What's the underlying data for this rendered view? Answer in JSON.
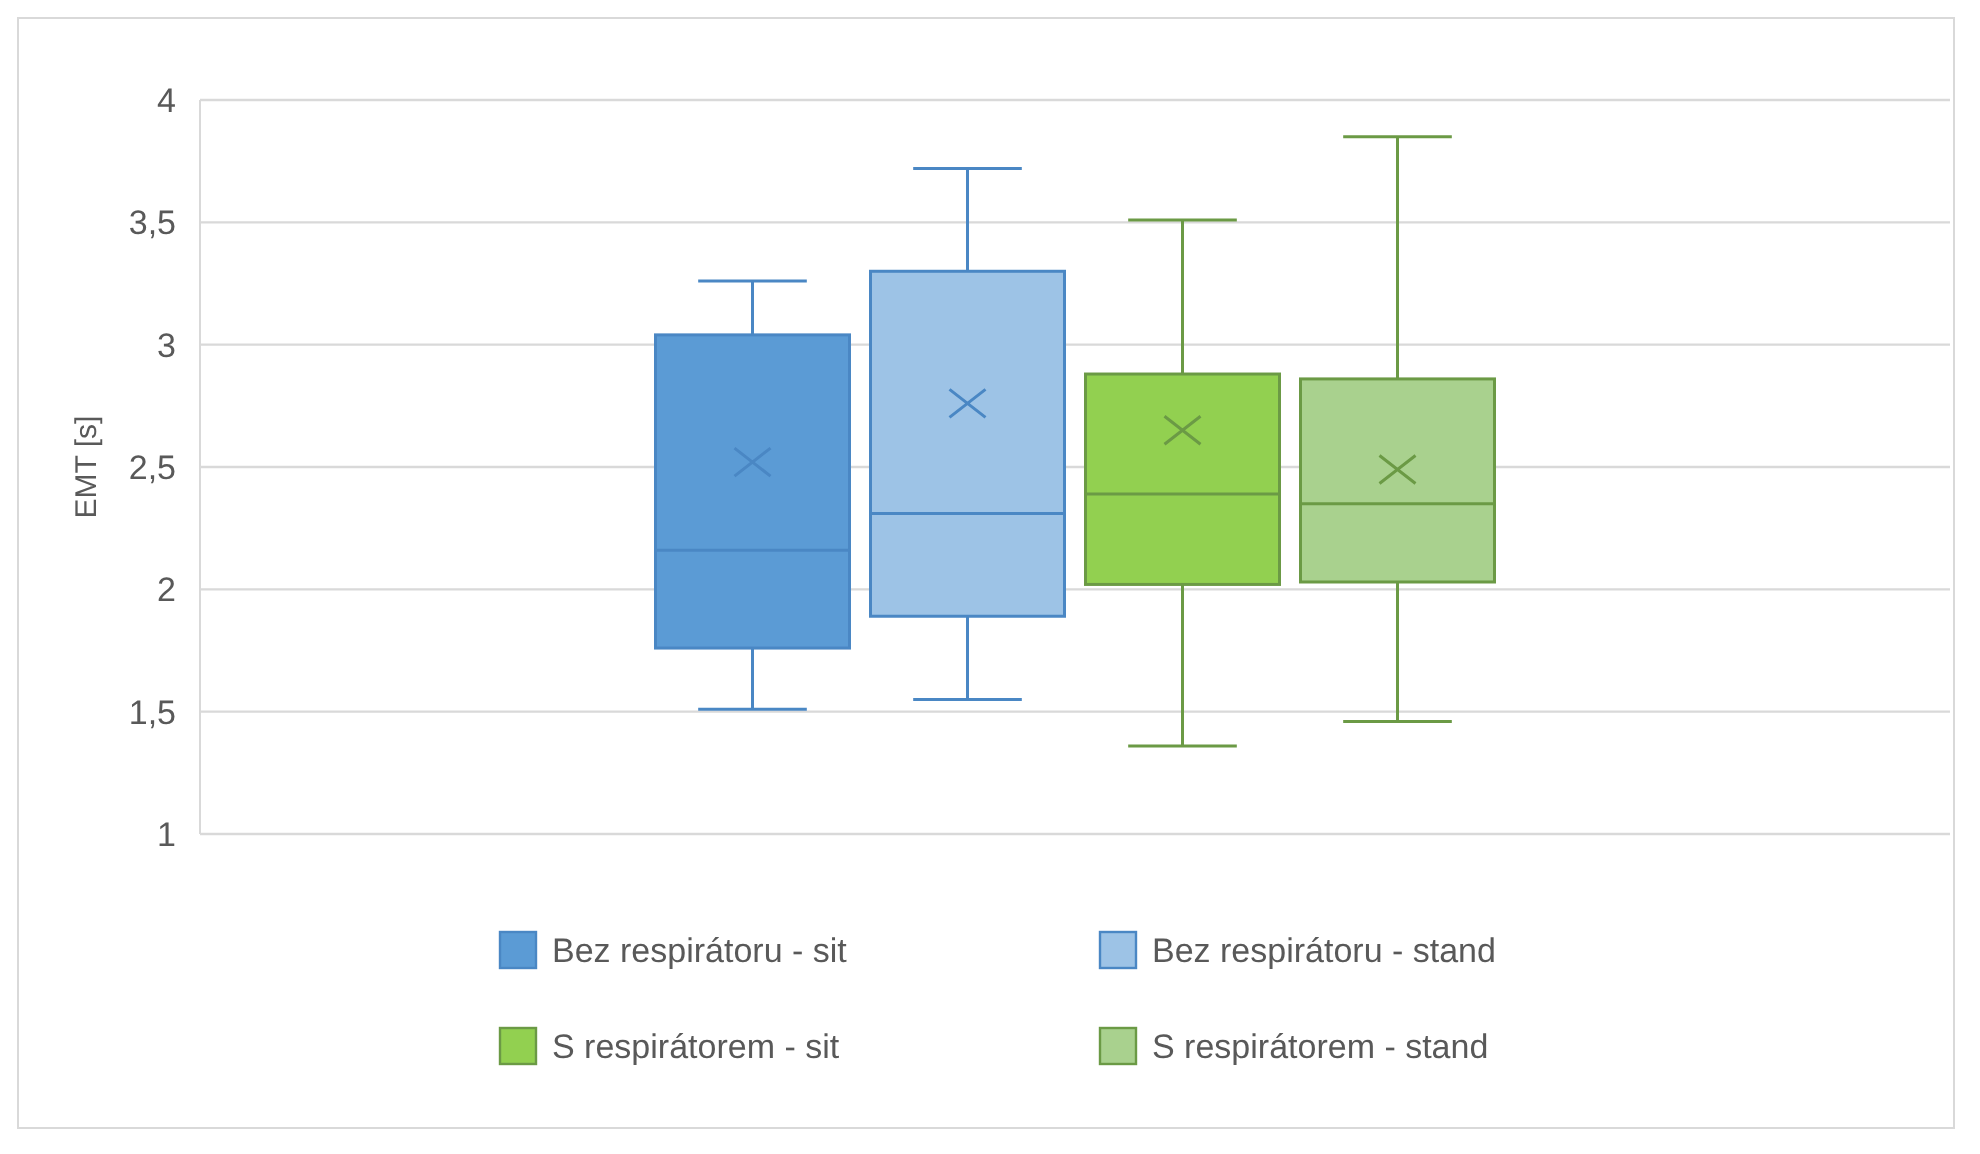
{
  "chart_data": {
    "type": "box",
    "ylabel": "EMT [s]",
    "categories": [
      null
    ],
    "ylim": [
      1,
      4
    ],
    "yticks": [
      1,
      {
        "value": 1.5,
        "label": "1,5"
      },
      2,
      {
        "value": 2.5,
        "label": "2,5"
      },
      3,
      {
        "value": 3.5,
        "label": "3,5"
      },
      4
    ],
    "tick_labels": "y",
    "grid": "y",
    "legend": "bottom",
    "series": [
      {
        "name": "Bez respirátoru - sit",
        "color": "#5b9bd5",
        "boxes": [
          {
            "low": 1.51,
            "q1": 1.76,
            "median": 2.16,
            "q3": 3.04,
            "high": 3.26,
            "mean": 2.52
          }
        ]
      },
      {
        "name": "Bez respirátoru - stand",
        "color": "#9dc3e6",
        "boxes": [
          {
            "low": 1.55,
            "q1": 1.89,
            "median": 2.31,
            "q3": 3.3,
            "high": 3.72,
            "mean": 2.76
          }
        ]
      },
      {
        "name": "S respirátorem - sit",
        "color": "#92d050",
        "boxes": [
          {
            "low": 1.36,
            "q1": 2.02,
            "median": 2.39,
            "q3": 2.88,
            "high": 3.51,
            "mean": 2.65
          }
        ]
      },
      {
        "name": "S respirátorem - stand",
        "color": "#a9d18e",
        "boxes": [
          {
            "low": 1.46,
            "q1": 2.03,
            "median": 2.35,
            "q3": 2.86,
            "high": 3.85,
            "mean": 2.49
          }
        ]
      }
    ]
  }
}
